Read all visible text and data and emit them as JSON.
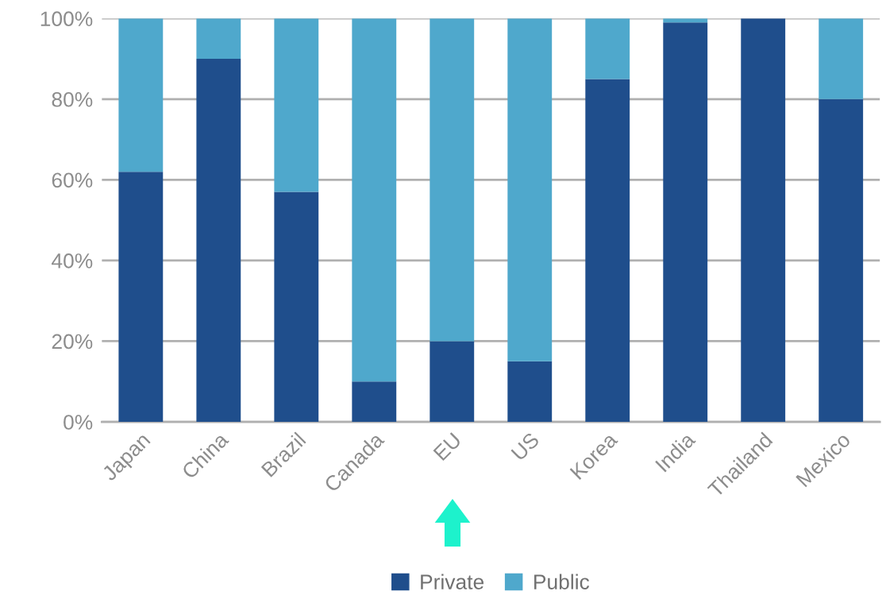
{
  "chart_data": {
    "type": "bar",
    "stacked": true,
    "categories": [
      "Japan",
      "China",
      "Brazil",
      "Canada",
      "EU",
      "US",
      "Korea",
      "India",
      "Thailand",
      "Mexico"
    ],
    "series": [
      {
        "name": "Private",
        "color": "#1f4e8c",
        "values": [
          62,
          90,
          57,
          10,
          20,
          15,
          85,
          99,
          100,
          80
        ]
      },
      {
        "name": "Public",
        "color": "#4fa8cc",
        "values": [
          38,
          10,
          43,
          90,
          80,
          85,
          15,
          1,
          0,
          20
        ]
      }
    ],
    "ylim": [
      0,
      100
    ],
    "yticks": [
      {
        "value": 0,
        "label": "0%"
      },
      {
        "value": 20,
        "label": "20%"
      },
      {
        "value": 40,
        "label": "40%"
      },
      {
        "value": 60,
        "label": "60%"
      },
      {
        "value": 80,
        "label": "80%"
      },
      {
        "value": 100,
        "label": "100%"
      }
    ],
    "grid": "y",
    "legend": "bottom"
  }
}
